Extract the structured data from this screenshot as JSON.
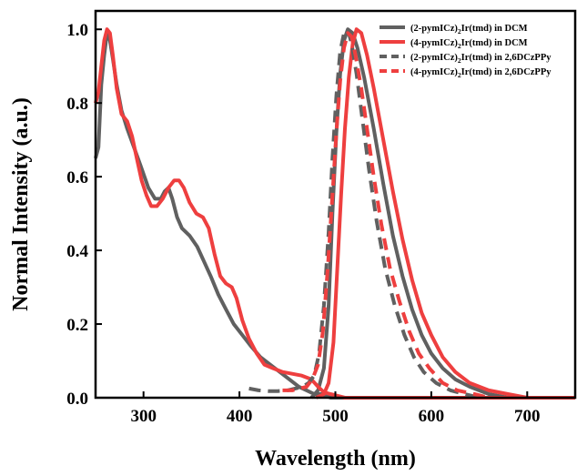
{
  "chart_data": {
    "type": "line",
    "xlabel": "Wavelength (nm)",
    "ylabel": "Normal Intensity (a.u.)",
    "xlim": [
      250,
      750
    ],
    "ylim": [
      0.0,
      1.05
    ],
    "x_ticks": [
      300,
      400,
      500,
      600,
      700
    ],
    "y_ticks": [
      0.0,
      0.2,
      0.4,
      0.6,
      0.8,
      1.0
    ],
    "x_tick_labels": [
      "300",
      "400",
      "500",
      "600",
      "700"
    ],
    "y_tick_labels": [
      "0.0",
      "0.2",
      "0.4",
      "0.6",
      "0.8",
      "1.0"
    ],
    "legend_position": "top-right",
    "grid": false,
    "series": [
      {
        "name": "(2-pymICz)2Ir(tmd) in DCM",
        "legend_main": "(2-pymICz)",
        "legend_sub": "2",
        "legend_rest": "Ir(tmd) in DCM",
        "color": "#606060",
        "dash": "solid",
        "points": [
          [
            250,
            0.65
          ],
          [
            253,
            0.68
          ],
          [
            256,
            0.85
          ],
          [
            259,
            0.93
          ],
          [
            262,
            0.99
          ],
          [
            265,
            0.97
          ],
          [
            268,
            0.92
          ],
          [
            272,
            0.85
          ],
          [
            277,
            0.78
          ],
          [
            283,
            0.73
          ],
          [
            290,
            0.68
          ],
          [
            297,
            0.63
          ],
          [
            305,
            0.57
          ],
          [
            312,
            0.54
          ],
          [
            318,
            0.54
          ],
          [
            322,
            0.56
          ],
          [
            326,
            0.57
          ],
          [
            330,
            0.54
          ],
          [
            335,
            0.49
          ],
          [
            340,
            0.46
          ],
          [
            348,
            0.44
          ],
          [
            356,
            0.41
          ],
          [
            363,
            0.37
          ],
          [
            370,
            0.33
          ],
          [
            378,
            0.28
          ],
          [
            386,
            0.24
          ],
          [
            394,
            0.2
          ],
          [
            403,
            0.17
          ],
          [
            412,
            0.14
          ],
          [
            422,
            0.11
          ],
          [
            432,
            0.09
          ],
          [
            442,
            0.07
          ],
          [
            452,
            0.05
          ],
          [
            462,
            0.03
          ],
          [
            470,
            0.02
          ],
          [
            478,
            0.01
          ],
          [
            485,
            0.01
          ],
          [
            495,
            0.0
          ],
          [
            520,
            0.0
          ],
          [
            750,
            0.0
          ],
          null,
          [
            475,
            0.0
          ],
          [
            482,
            0.02
          ],
          [
            488,
            0.08
          ],
          [
            493,
            0.25
          ],
          [
            497,
            0.5
          ],
          [
            501,
            0.72
          ],
          [
            505,
            0.88
          ],
          [
            509,
            0.97
          ],
          [
            513,
            1.0
          ],
          [
            518,
            0.99
          ],
          [
            523,
            0.95
          ],
          [
            530,
            0.87
          ],
          [
            540,
            0.73
          ],
          [
            550,
            0.58
          ],
          [
            560,
            0.44
          ],
          [
            570,
            0.33
          ],
          [
            580,
            0.24
          ],
          [
            590,
            0.17
          ],
          [
            600,
            0.12
          ],
          [
            612,
            0.08
          ],
          [
            625,
            0.05
          ],
          [
            640,
            0.03
          ],
          [
            660,
            0.01
          ],
          [
            680,
            0.0
          ],
          [
            750,
            0.0
          ]
        ]
      },
      {
        "name": "(4-pymICz)2Ir(tmd) in DCM",
        "legend_main": "(4-pymICz)",
        "legend_sub": "2",
        "legend_rest": "Ir(tmd) in DCM",
        "color": "#ee3f3f",
        "dash": "solid",
        "points": [
          [
            250,
            0.8
          ],
          [
            253,
            0.83
          ],
          [
            256,
            0.9
          ],
          [
            259,
            0.97
          ],
          [
            262,
            1.0
          ],
          [
            265,
            0.99
          ],
          [
            268,
            0.93
          ],
          [
            272,
            0.84
          ],
          [
            277,
            0.77
          ],
          [
            283,
            0.75
          ],
          [
            288,
            0.71
          ],
          [
            293,
            0.65
          ],
          [
            298,
            0.59
          ],
          [
            303,
            0.55
          ],
          [
            308,
            0.52
          ],
          [
            314,
            0.52
          ],
          [
            320,
            0.54
          ],
          [
            326,
            0.57
          ],
          [
            332,
            0.59
          ],
          [
            337,
            0.59
          ],
          [
            342,
            0.57
          ],
          [
            348,
            0.53
          ],
          [
            355,
            0.5
          ],
          [
            362,
            0.49
          ],
          [
            368,
            0.46
          ],
          [
            374,
            0.39
          ],
          [
            380,
            0.33
          ],
          [
            386,
            0.31
          ],
          [
            392,
            0.3
          ],
          [
            397,
            0.27
          ],
          [
            403,
            0.21
          ],
          [
            410,
            0.16
          ],
          [
            418,
            0.12
          ],
          [
            426,
            0.09
          ],
          [
            435,
            0.08
          ],
          [
            445,
            0.07
          ],
          [
            455,
            0.065
          ],
          [
            465,
            0.06
          ],
          [
            475,
            0.05
          ],
          [
            482,
            0.03
          ],
          [
            488,
            0.015
          ],
          [
            495,
            0.01
          ],
          [
            510,
            0.0
          ],
          [
            750,
            0.0
          ],
          null,
          [
            480,
            0.0
          ],
          [
            488,
            0.01
          ],
          [
            493,
            0.04
          ],
          [
            498,
            0.15
          ],
          [
            502,
            0.35
          ],
          [
            506,
            0.55
          ],
          [
            510,
            0.73
          ],
          [
            514,
            0.87
          ],
          [
            518,
            0.96
          ],
          [
            522,
            1.0
          ],
          [
            527,
            0.99
          ],
          [
            533,
            0.93
          ],
          [
            540,
            0.84
          ],
          [
            550,
            0.7
          ],
          [
            560,
            0.56
          ],
          [
            570,
            0.43
          ],
          [
            580,
            0.32
          ],
          [
            590,
            0.23
          ],
          [
            600,
            0.17
          ],
          [
            612,
            0.11
          ],
          [
            625,
            0.07
          ],
          [
            640,
            0.04
          ],
          [
            660,
            0.02
          ],
          [
            680,
            0.01
          ],
          [
            700,
            0.0
          ],
          [
            750,
            0.0
          ]
        ]
      },
      {
        "name": "(2-pymICz)2Ir(tmd) in 2,6DCzPPy",
        "legend_main": "(2-pymICz)",
        "legend_sub": "2",
        "legend_rest": "Ir(tmd) in 2,6DCzPPy",
        "color": "#606060",
        "dash": "dashed",
        "points": [
          [
            410,
            0.025
          ],
          [
            420,
            0.02
          ],
          [
            430,
            0.018
          ],
          [
            440,
            0.018
          ],
          [
            450,
            0.02
          ],
          [
            458,
            0.025
          ],
          [
            466,
            0.03
          ],
          [
            472,
            0.04
          ],
          [
            478,
            0.06
          ],
          [
            483,
            0.12
          ],
          [
            488,
            0.25
          ],
          [
            493,
            0.45
          ],
          [
            497,
            0.65
          ],
          [
            501,
            0.82
          ],
          [
            505,
            0.94
          ],
          [
            509,
            0.99
          ],
          [
            513,
            1.0
          ],
          [
            517,
            0.96
          ],
          [
            522,
            0.88
          ],
          [
            528,
            0.76
          ],
          [
            535,
            0.62
          ],
          [
            543,
            0.48
          ],
          [
            552,
            0.35
          ],
          [
            562,
            0.25
          ],
          [
            572,
            0.17
          ],
          [
            582,
            0.11
          ],
          [
            592,
            0.07
          ],
          [
            605,
            0.04
          ],
          [
            620,
            0.02
          ],
          [
            635,
            0.01
          ],
          [
            650,
            0.0
          ]
        ]
      },
      {
        "name": "(4-pymICz)2Ir(tmd) in 2,6DCzPPy",
        "legend_main": "(4-pymICz)",
        "legend_sub": "2",
        "legend_rest": "Ir(tmd) in 2,6DCzPPy",
        "color": "#ee3f3f",
        "dash": "dashed",
        "points": [
          [
            445,
            0.02
          ],
          [
            455,
            0.02
          ],
          [
            463,
            0.025
          ],
          [
            470,
            0.03
          ],
          [
            476,
            0.05
          ],
          [
            482,
            0.09
          ],
          [
            487,
            0.18
          ],
          [
            492,
            0.35
          ],
          [
            497,
            0.55
          ],
          [
            501,
            0.72
          ],
          [
            505,
            0.86
          ],
          [
            509,
            0.95
          ],
          [
            513,
            0.99
          ],
          [
            517,
            0.98
          ],
          [
            521,
            0.93
          ],
          [
            527,
            0.84
          ],
          [
            533,
            0.73
          ],
          [
            540,
            0.6
          ],
          [
            548,
            0.47
          ],
          [
            557,
            0.35
          ],
          [
            567,
            0.26
          ],
          [
            577,
            0.18
          ],
          [
            587,
            0.12
          ],
          [
            598,
            0.08
          ],
          [
            612,
            0.04
          ],
          [
            627,
            0.02
          ],
          [
            645,
            0.01
          ],
          [
            660,
            0.0
          ]
        ]
      }
    ]
  }
}
